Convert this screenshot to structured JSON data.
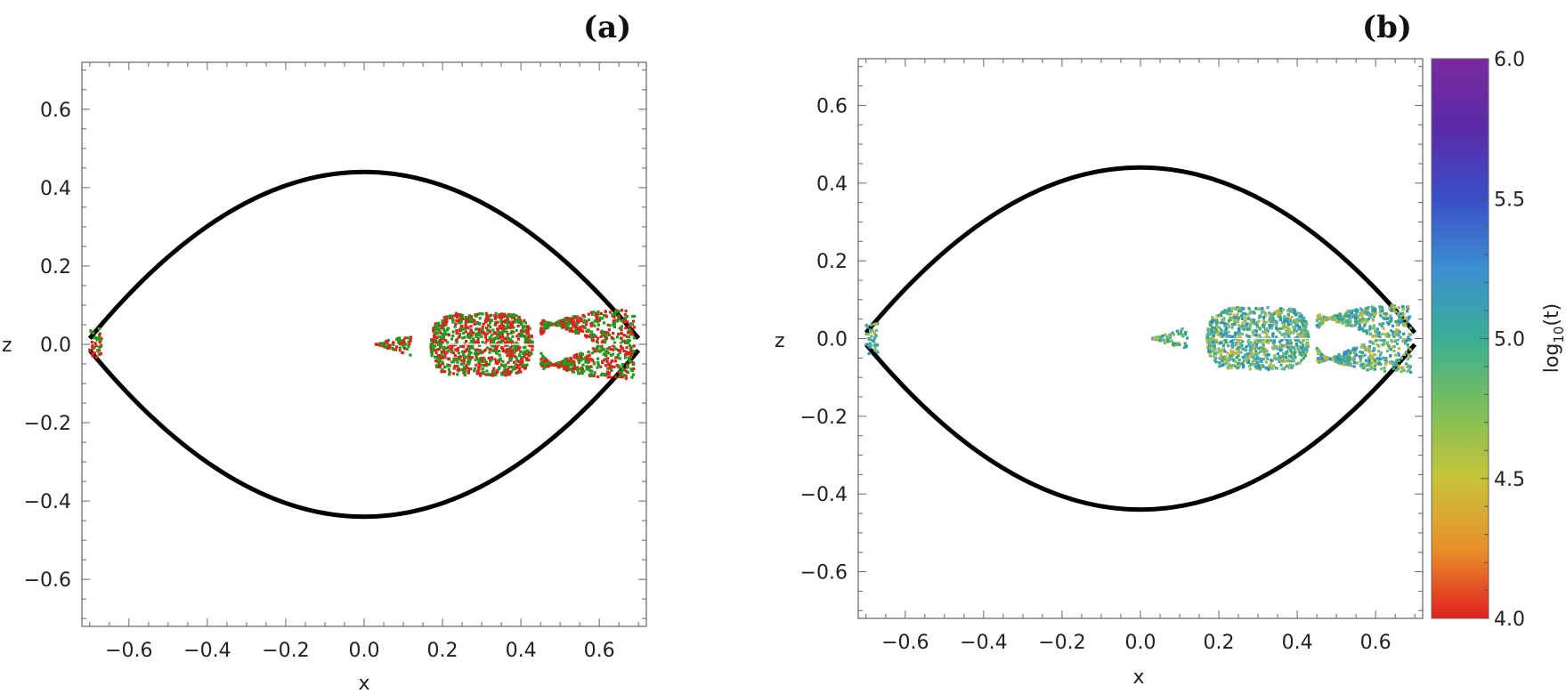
{
  "chart_data": [
    {
      "type": "scatter",
      "panel_label": "(a)",
      "xlabel": "x",
      "ylabel": "z",
      "xlim": [
        -0.72,
        0.72
      ],
      "ylim": [
        -0.72,
        0.72
      ],
      "xticks": [
        {
          "value": -0.6,
          "label": "−0.6"
        },
        {
          "value": -0.4,
          "label": "−0.4"
        },
        {
          "value": -0.2,
          "label": "−0.2"
        },
        {
          "value": 0.0,
          "label": "0.0"
        },
        {
          "value": 0.2,
          "label": "0.2"
        },
        {
          "value": 0.4,
          "label": "0.4"
        },
        {
          "value": 0.6,
          "label": "0.6"
        }
      ],
      "yticks": [
        {
          "value": 0.6,
          "label": "0.6"
        },
        {
          "value": 0.4,
          "label": "0.4"
        },
        {
          "value": 0.2,
          "label": "0.2"
        },
        {
          "value": 0.0,
          "label": "0.0"
        },
        {
          "value": -0.2,
          "label": "−0.2"
        },
        {
          "value": -0.4,
          "label": "−0.4"
        },
        {
          "value": -0.6,
          "label": "−0.6"
        }
      ],
      "curve": {
        "name": "zero-velocity curve",
        "x_extent": 0.7,
        "z_max": 0.44
      },
      "point_colors": [
        "#1e9a1e",
        "#e0201c"
      ],
      "regions": [
        {
          "name": "left-cusp",
          "x_range": [
            -0.7,
            -0.67
          ],
          "z_halfwidth": 0.04
        },
        {
          "name": "small-wedge",
          "x_range": [
            0.03,
            0.12
          ],
          "z_halfwidth": 0.03
        },
        {
          "name": "central-blob",
          "x_range": [
            0.17,
            0.43
          ],
          "z_halfwidth": 0.08
        },
        {
          "name": "right-crescent",
          "x_range": [
            0.45,
            0.69
          ],
          "z_halfwidth": 0.12
        }
      ]
    },
    {
      "type": "scatter",
      "panel_label": "(b)",
      "xlabel": "x",
      "ylabel": "z",
      "xlim": [
        -0.72,
        0.72
      ],
      "ylim": [
        -0.72,
        0.72
      ],
      "xticks": [
        {
          "value": -0.6,
          "label": "−0.6"
        },
        {
          "value": -0.4,
          "label": "−0.4"
        },
        {
          "value": -0.2,
          "label": "−0.2"
        },
        {
          "value": 0.0,
          "label": "0.0"
        },
        {
          "value": 0.2,
          "label": "0.2"
        },
        {
          "value": 0.4,
          "label": "0.4"
        },
        {
          "value": 0.6,
          "label": "0.6"
        }
      ],
      "yticks": [
        {
          "value": 0.6,
          "label": "0.6"
        },
        {
          "value": 0.4,
          "label": "0.4"
        },
        {
          "value": 0.2,
          "label": "0.2"
        },
        {
          "value": 0.0,
          "label": "0.0"
        },
        {
          "value": -0.2,
          "label": "−0.2"
        },
        {
          "value": -0.4,
          "label": "−0.4"
        },
        {
          "value": -0.6,
          "label": "−0.6"
        }
      ],
      "curve": {
        "name": "zero-velocity curve",
        "x_extent": 0.7,
        "z_max": 0.44
      },
      "point_colors": [
        "#2e8fc0",
        "#4aa8b4",
        "#6fb88a",
        "#8fbf58",
        "#c7b340",
        "#3aa87a"
      ],
      "regions": [
        {
          "name": "left-cusp",
          "x_range": [
            -0.7,
            -0.67
          ],
          "z_halfwidth": 0.04
        },
        {
          "name": "small-wedge",
          "x_range": [
            0.03,
            0.12
          ],
          "z_halfwidth": 0.03
        },
        {
          "name": "central-blob",
          "x_range": [
            0.17,
            0.43
          ],
          "z_halfwidth": 0.08
        },
        {
          "name": "right-crescent",
          "x_range": [
            0.45,
            0.69
          ],
          "z_halfwidth": 0.12
        }
      ],
      "colorbar": {
        "label": "log10(t)",
        "label_base": "log",
        "label_sub": "10",
        "label_arg": "(t)",
        "range": [
          4.0,
          6.0
        ],
        "ticks": [
          {
            "value": 6.0,
            "label": "6.0"
          },
          {
            "value": 5.5,
            "label": "5.5"
          },
          {
            "value": 5.0,
            "label": "5.0"
          },
          {
            "value": 4.5,
            "label": "4.5"
          },
          {
            "value": 4.0,
            "label": "4.0"
          }
        ],
        "gradient": [
          "#e02020",
          "#e8902a",
          "#c8c43a",
          "#7cbf5a",
          "#3aae94",
          "#3c8fd0",
          "#3a4fc8",
          "#5a2aa8",
          "#7a2aa0"
        ]
      }
    }
  ]
}
